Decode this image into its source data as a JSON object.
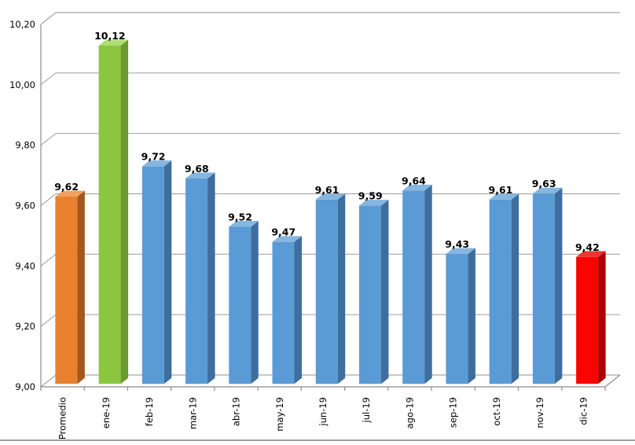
{
  "chart_data": {
    "type": "bar",
    "style": "3d-clustered-column",
    "title": "",
    "legend": "none",
    "grid": true,
    "categories": [
      "Promedio",
      "ene-19",
      "feb-19",
      "mar-19",
      "abr-19",
      "may-19",
      "jun-19",
      "jul-19",
      "ago-19",
      "sep-19",
      "oct-19",
      "nov-19",
      "dic-19"
    ],
    "values": [
      9.62,
      10.12,
      9.72,
      9.68,
      9.52,
      9.47,
      9.61,
      9.59,
      9.64,
      9.43,
      9.61,
      9.63,
      9.42
    ],
    "value_labels": [
      "9,62",
      "10,12",
      "9,72",
      "9,68",
      "9,52",
      "9,47",
      "9,61",
      "9,59",
      "9,64",
      "9,43",
      "9,61",
      "9,63",
      "9,42"
    ],
    "bar_color_keys": [
      "orange",
      "green",
      "blue",
      "blue",
      "blue",
      "blue",
      "blue",
      "blue",
      "blue",
      "blue",
      "blue",
      "blue",
      "red"
    ],
    "palette": {
      "orange": {
        "front": "#E9802E",
        "side": "#A4571A",
        "top": "#F0A25E"
      },
      "green": {
        "front": "#8CC63F",
        "side": "#6B9A2F",
        "top": "#AEDC77"
      },
      "blue": {
        "front": "#5B9BD5",
        "side": "#3D6E9E",
        "top": "#85B6E0"
      },
      "red": {
        "front": "#FB0303",
        "side": "#AF0202",
        "top": "#EE3333"
      }
    },
    "y_axis": {
      "min": 9.0,
      "max": 10.2,
      "step": 0.2,
      "tick_labels": [
        "9,00",
        "9,20",
        "9,40",
        "9,60",
        "9,80",
        "10,00",
        "10,20"
      ]
    },
    "xlabel": "",
    "ylabel": ""
  },
  "frame": {
    "background": "#FFFFFF",
    "gridline_color": "#A8A8A8",
    "axis_color": "#8C8C8C",
    "text_color": "#000000",
    "bottom_border_color": "#9C9C9C"
  }
}
